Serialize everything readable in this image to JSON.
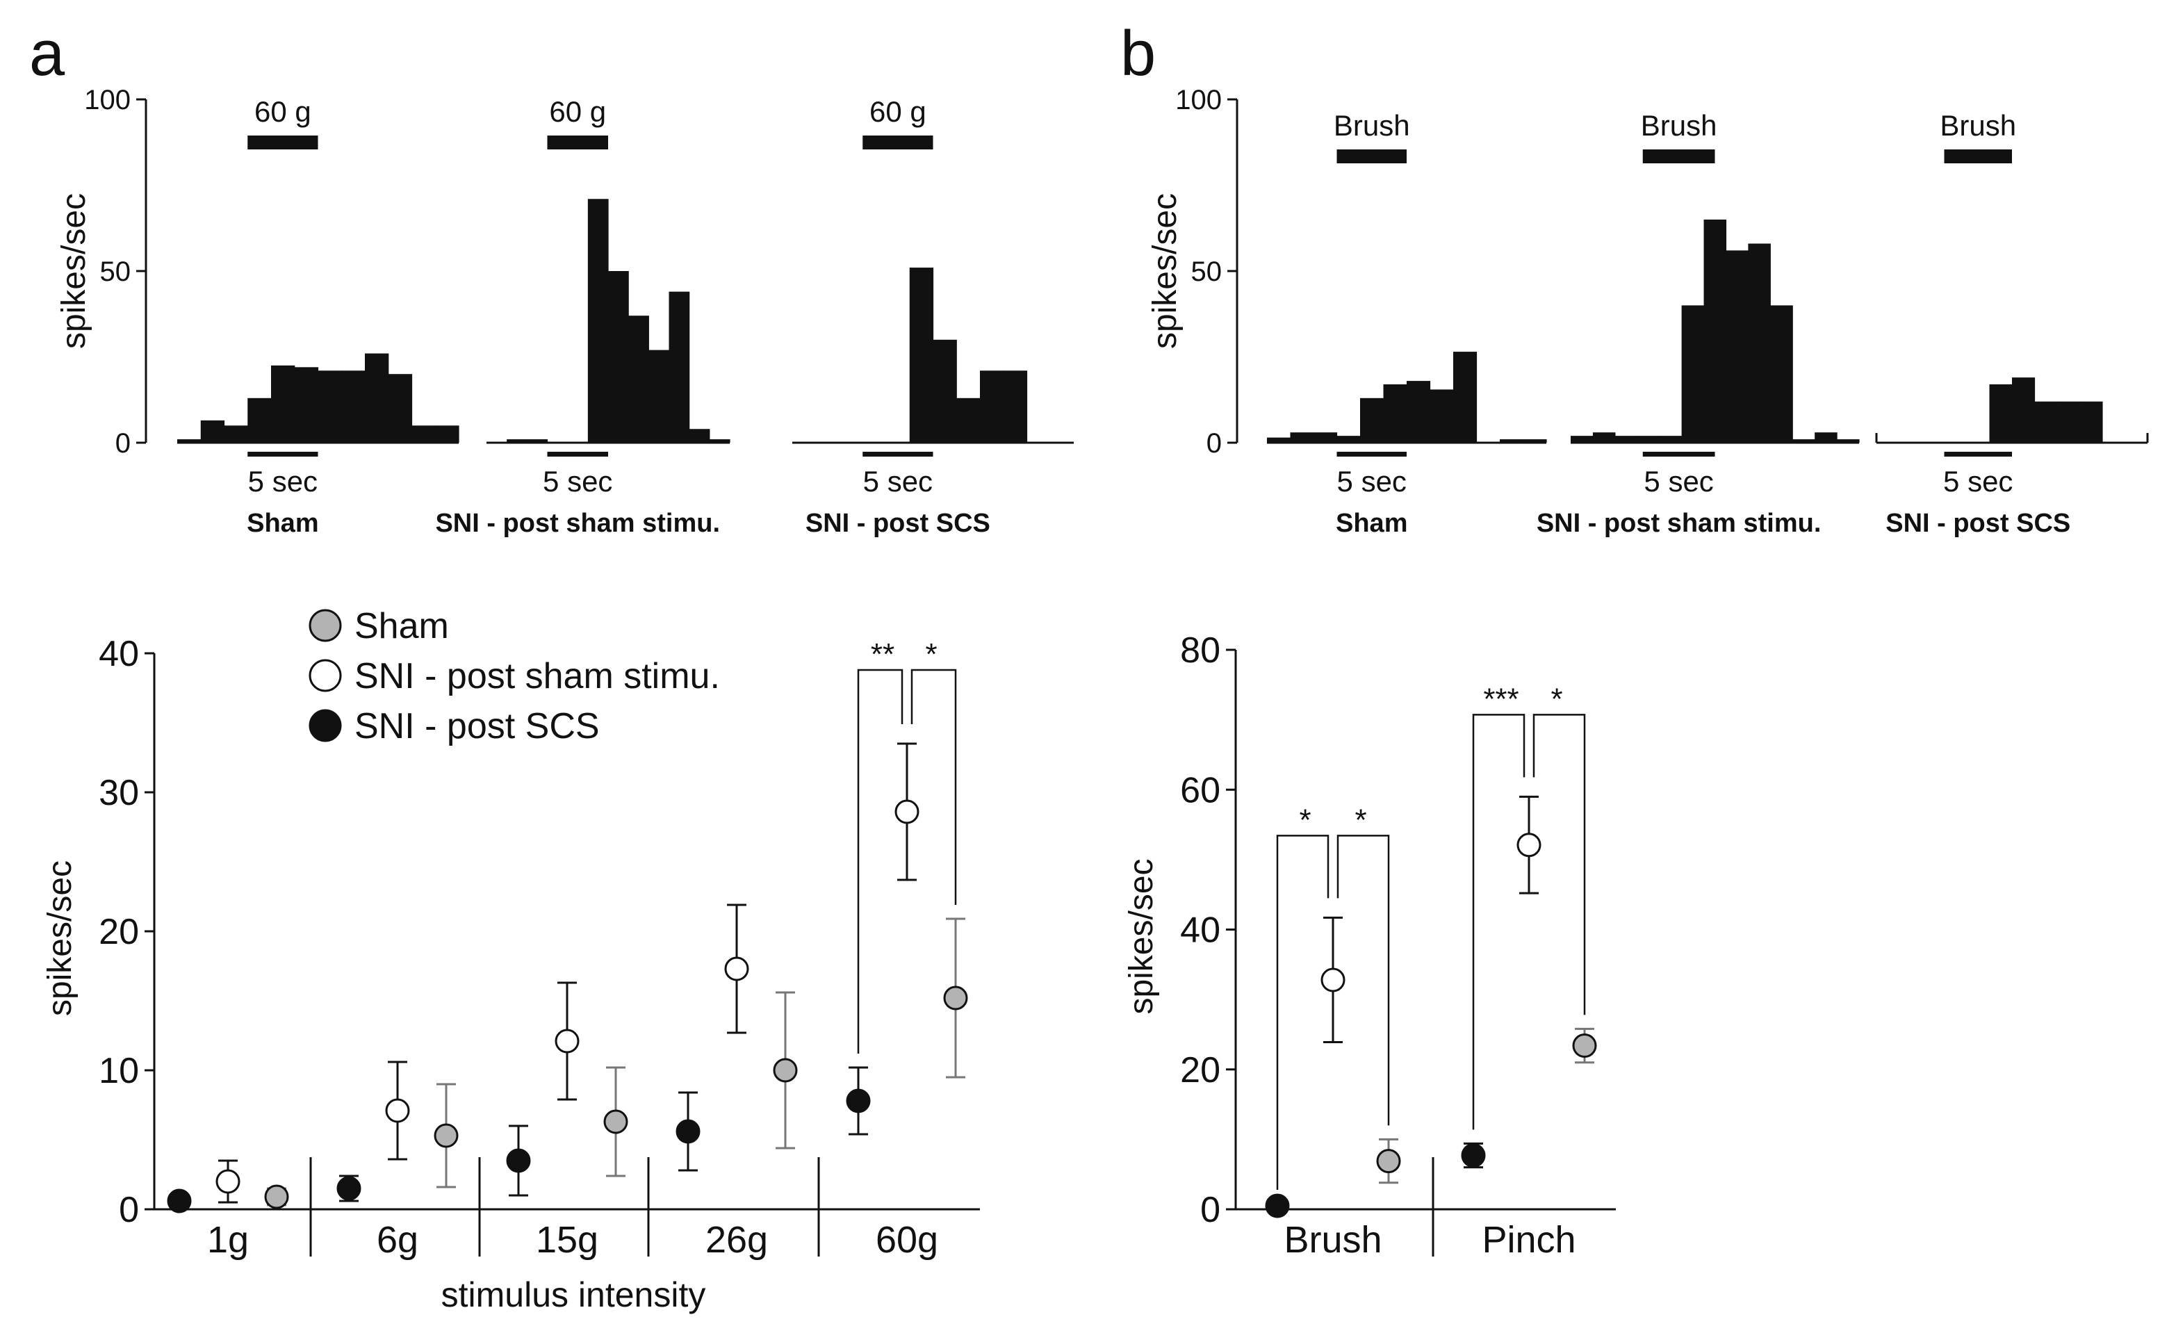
{
  "panel_a": {
    "letter": "a",
    "histograms": [
      {
        "stimulus": "60 g",
        "time_label": "5 sec",
        "condition": "Sham"
      },
      {
        "stimulus": "60 g",
        "time_label": "5 sec",
        "condition": "SNI - post sham stimu."
      },
      {
        "stimulus": "60 g",
        "time_label": "5 sec",
        "condition": "SNI - post SCS"
      }
    ],
    "hist_y_ticks": [
      "100",
      "50",
      "0"
    ],
    "hist_ylabel": "spikes/sec"
  },
  "panel_b": {
    "letter": "b",
    "histograms": [
      {
        "stimulus": "Brush",
        "time_label": "5 sec",
        "condition": "Sham"
      },
      {
        "stimulus": "Brush",
        "time_label": "5 sec",
        "condition": "SNI - post sham stimu."
      },
      {
        "stimulus": "Brush",
        "time_label": "5 sec",
        "condition": "SNI - post SCS"
      }
    ],
    "hist_y_ticks": [
      "100",
      "50",
      "0"
    ],
    "hist_ylabel": "spikes/sec"
  },
  "legend": [
    {
      "label": "Sham",
      "fill": "#b3b3b3"
    },
    {
      "label": "SNI - post sham stimu.",
      "fill": "#ffffff"
    },
    {
      "label": "SNI - post SCS",
      "fill": "#111111"
    }
  ],
  "colors": {
    "sham": "#b3b3b3",
    "sni_sham": "#ffffff",
    "sni_scs": "#111111",
    "ink": "#111111"
  },
  "chart_data": [
    {
      "id": "a_hist_sham",
      "type": "bar",
      "title": "Sham",
      "ylabel": "spikes/sec",
      "ylim": [
        0,
        100
      ],
      "bar_range": [
        0,
        20
      ],
      "stim_bar": [
        5,
        10
      ],
      "values": [
        1,
        6.5,
        5,
        13,
        22.5,
        22,
        21,
        21,
        26,
        20,
        5,
        5
      ]
    },
    {
      "id": "a_hist_sni_sham",
      "type": "bar",
      "title": "SNI - post sham stimu.",
      "ylabel": "spikes/sec",
      "ylim": [
        0,
        100
      ],
      "bar_range": [
        0,
        20
      ],
      "stim_bar": [
        5,
        10
      ],
      "values": [
        0,
        1,
        1,
        0,
        0,
        71,
        50,
        37,
        27,
        44,
        4,
        1
      ]
    },
    {
      "id": "a_hist_sni_scs",
      "type": "bar",
      "title": "SNI - post SCS",
      "ylabel": "spikes/sec",
      "ylim": [
        0,
        100
      ],
      "bar_range": [
        0,
        20
      ],
      "stim_bar": [
        5,
        10
      ],
      "values": [
        0,
        0,
        0,
        0,
        0,
        51,
        30,
        13,
        21,
        21,
        0,
        0
      ]
    },
    {
      "id": "b_hist_sham",
      "type": "bar",
      "title": "Sham",
      "ylabel": "spikes/sec",
      "ylim": [
        0,
        100
      ],
      "bar_range": [
        0,
        20
      ],
      "stim_bar": [
        5,
        10
      ],
      "values": [
        1.5,
        3,
        3,
        2,
        13,
        17,
        18,
        15.5,
        26.5,
        0,
        1,
        1
      ]
    },
    {
      "id": "b_hist_sni_sham",
      "type": "bar",
      "title": "SNI - post sham stimu.",
      "ylabel": "spikes/sec",
      "ylim": [
        0,
        100
      ],
      "bar_range": [
        0,
        20
      ],
      "stim_bar": [
        5,
        10
      ],
      "values": [
        2,
        3,
        2,
        2,
        2,
        40,
        65,
        56,
        58,
        40,
        1,
        3,
        1
      ]
    },
    {
      "id": "b_hist_sni_scs",
      "type": "bar",
      "title": "SNI - post SCS",
      "ylabel": "spikes/sec",
      "ylim": [
        0,
        100
      ],
      "bar_range": [
        0,
        20
      ],
      "stim_bar": [
        5,
        10
      ],
      "values": [
        0,
        0,
        0,
        0,
        0,
        17,
        19,
        12,
        12,
        12,
        0,
        0
      ]
    },
    {
      "id": "a_scatter",
      "type": "scatter",
      "xlabel": "stimulus intensity",
      "ylabel": "spikes/sec",
      "ylim": [
        0,
        40
      ],
      "yticks": [
        0,
        10,
        20,
        30,
        40
      ],
      "categories": [
        "1g",
        "6g",
        "15g",
        "26g",
        "60g"
      ],
      "series": [
        {
          "name": "SNI - post SCS",
          "values": [
            0.6,
            1.5,
            3.5,
            5.6,
            7.8
          ],
          "errors": [
            0.3,
            0.9,
            2.5,
            2.8,
            2.4
          ]
        },
        {
          "name": "SNI - post sham stimu.",
          "values": [
            2.0,
            7.1,
            12.1,
            17.3,
            28.6
          ],
          "errors": [
            1.5,
            3.5,
            4.2,
            4.6,
            4.9
          ]
        },
        {
          "name": "Sham",
          "values": [
            0.9,
            5.3,
            6.3,
            10.0,
            15.2
          ],
          "errors": [
            0.6,
            3.7,
            3.9,
            5.6,
            5.7
          ]
        }
      ],
      "significance": [
        {
          "category": "60g",
          "labels": [
            "**",
            "*"
          ]
        }
      ]
    },
    {
      "id": "b_scatter",
      "type": "scatter",
      "ylabel": "spikes/sec",
      "ylim": [
        0,
        80
      ],
      "yticks": [
        0,
        20,
        40,
        60,
        80
      ],
      "categories": [
        "Brush",
        "Pinch"
      ],
      "series": [
        {
          "name": "SNI - post SCS",
          "values": [
            0.5,
            7.7
          ],
          "errors": [
            0.3,
            1.7
          ]
        },
        {
          "name": "SNI - post sham stimu.",
          "values": [
            32.8,
            52.1
          ],
          "errors": [
            8.9,
            6.9
          ]
        },
        {
          "name": "Sham",
          "values": [
            6.9,
            23.4
          ],
          "errors": [
            3.1,
            2.4
          ]
        }
      ],
      "significance": [
        {
          "category": "Brush",
          "labels": [
            "*",
            "*"
          ]
        },
        {
          "category": "Pinch",
          "labels": [
            "***",
            "*"
          ]
        }
      ]
    }
  ]
}
